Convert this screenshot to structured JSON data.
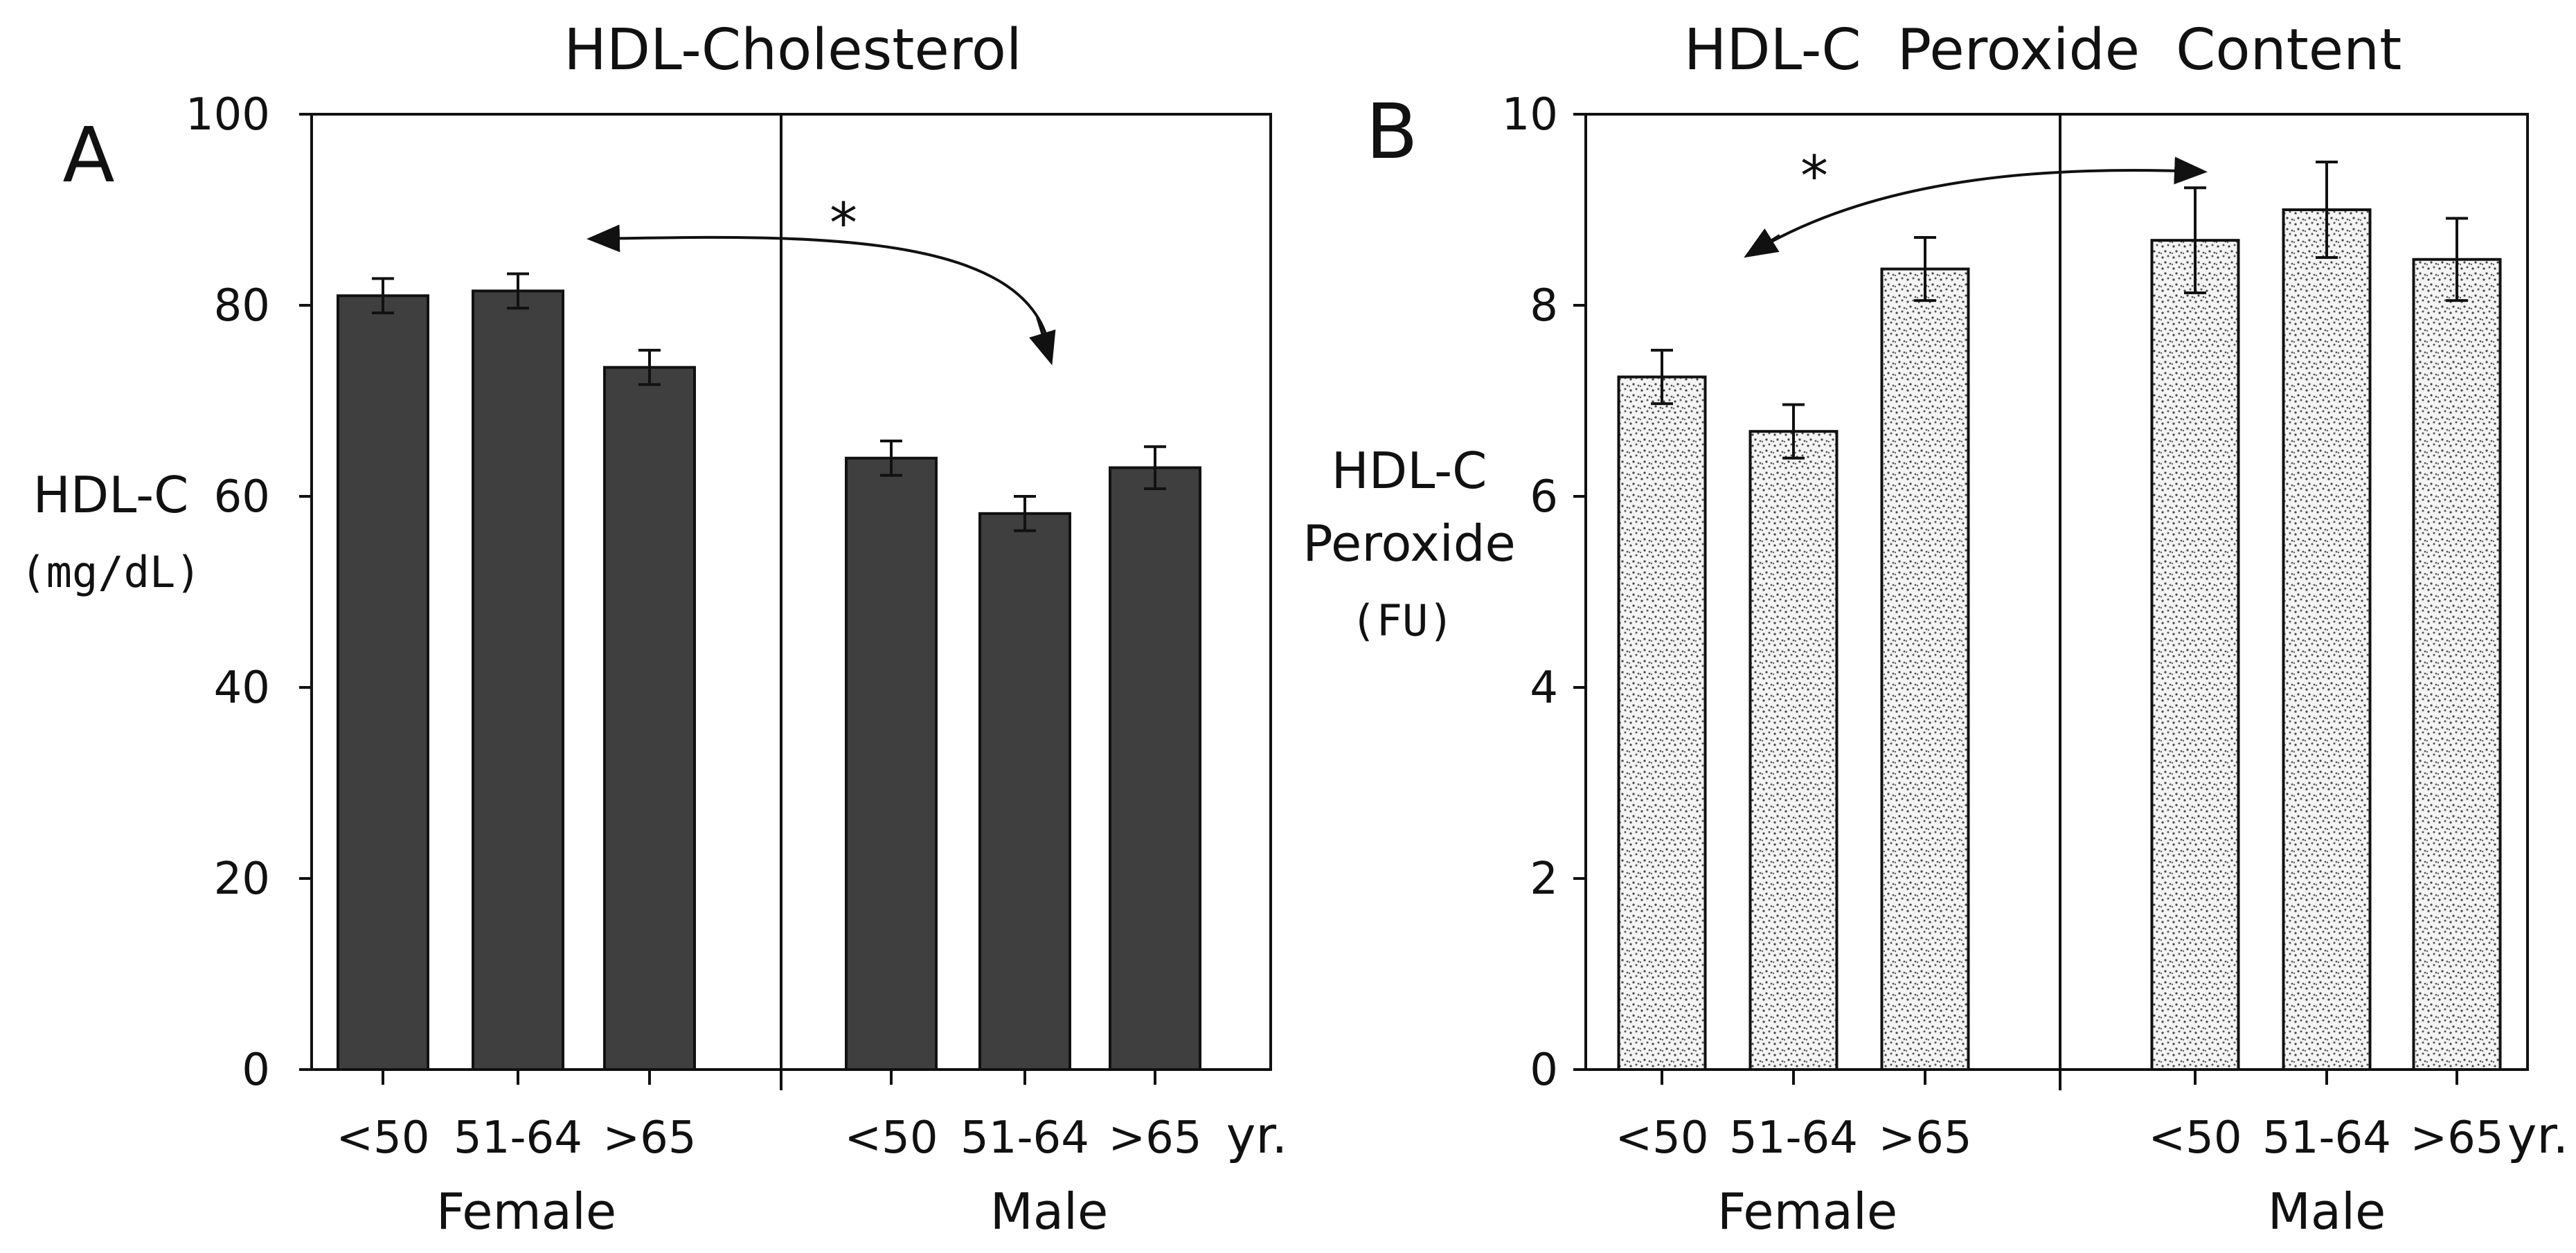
{
  "chart_data": [
    {
      "panel_letter": "A",
      "type": "bar",
      "title": "HDL-Cholesterol",
      "ylabel": "HDL-C",
      "ylabel_unit": "(mg/dL)",
      "ylim": [
        0,
        100
      ],
      "yticks": [
        0,
        20,
        40,
        60,
        80,
        100
      ],
      "groups": [
        {
          "name": "Female",
          "categories": [
            "<50",
            "51-64",
            ">65"
          ],
          "values": [
            81,
            81.5,
            73.5
          ],
          "errors": [
            1.8,
            1.8,
            1.8
          ]
        },
        {
          "name": "Male",
          "categories": [
            "<50",
            "51-64",
            ">65"
          ],
          "values": [
            64,
            58.2,
            63
          ],
          "errors": [
            1.8,
            1.8,
            2.2
          ]
        }
      ],
      "age_unit": "",
      "annotation": "*",
      "bar_color": "#3f3f3f",
      "pattern": "solid"
    },
    {
      "panel_letter": "B",
      "type": "bar",
      "title": "HDL-C  Peroxide  Content",
      "ylabel": "HDL-C",
      "ylabel_line2": "Peroxide",
      "ylabel_unit": "(FU)",
      "ylim": [
        0,
        10
      ],
      "yticks": [
        0,
        2,
        4,
        6,
        8,
        10
      ],
      "groups": [
        {
          "name": "Female",
          "categories": [
            "<50",
            "51-64",
            ">65"
          ],
          "values": [
            7.25,
            6.68,
            8.38
          ],
          "errors": [
            0.28,
            0.28,
            0.33
          ]
        },
        {
          "name": "Male",
          "categories": [
            "<50",
            "51-64",
            ">65"
          ],
          "values": [
            8.68,
            9.0,
            8.48
          ],
          "errors": [
            0.55,
            0.5,
            0.43
          ]
        }
      ],
      "age_unit": "yr.",
      "annotation": "*",
      "bar_color": "#f4f4f4",
      "pattern": "stipple"
    }
  ],
  "extra_labels": {
    "panelA_age_unit": "yr."
  }
}
